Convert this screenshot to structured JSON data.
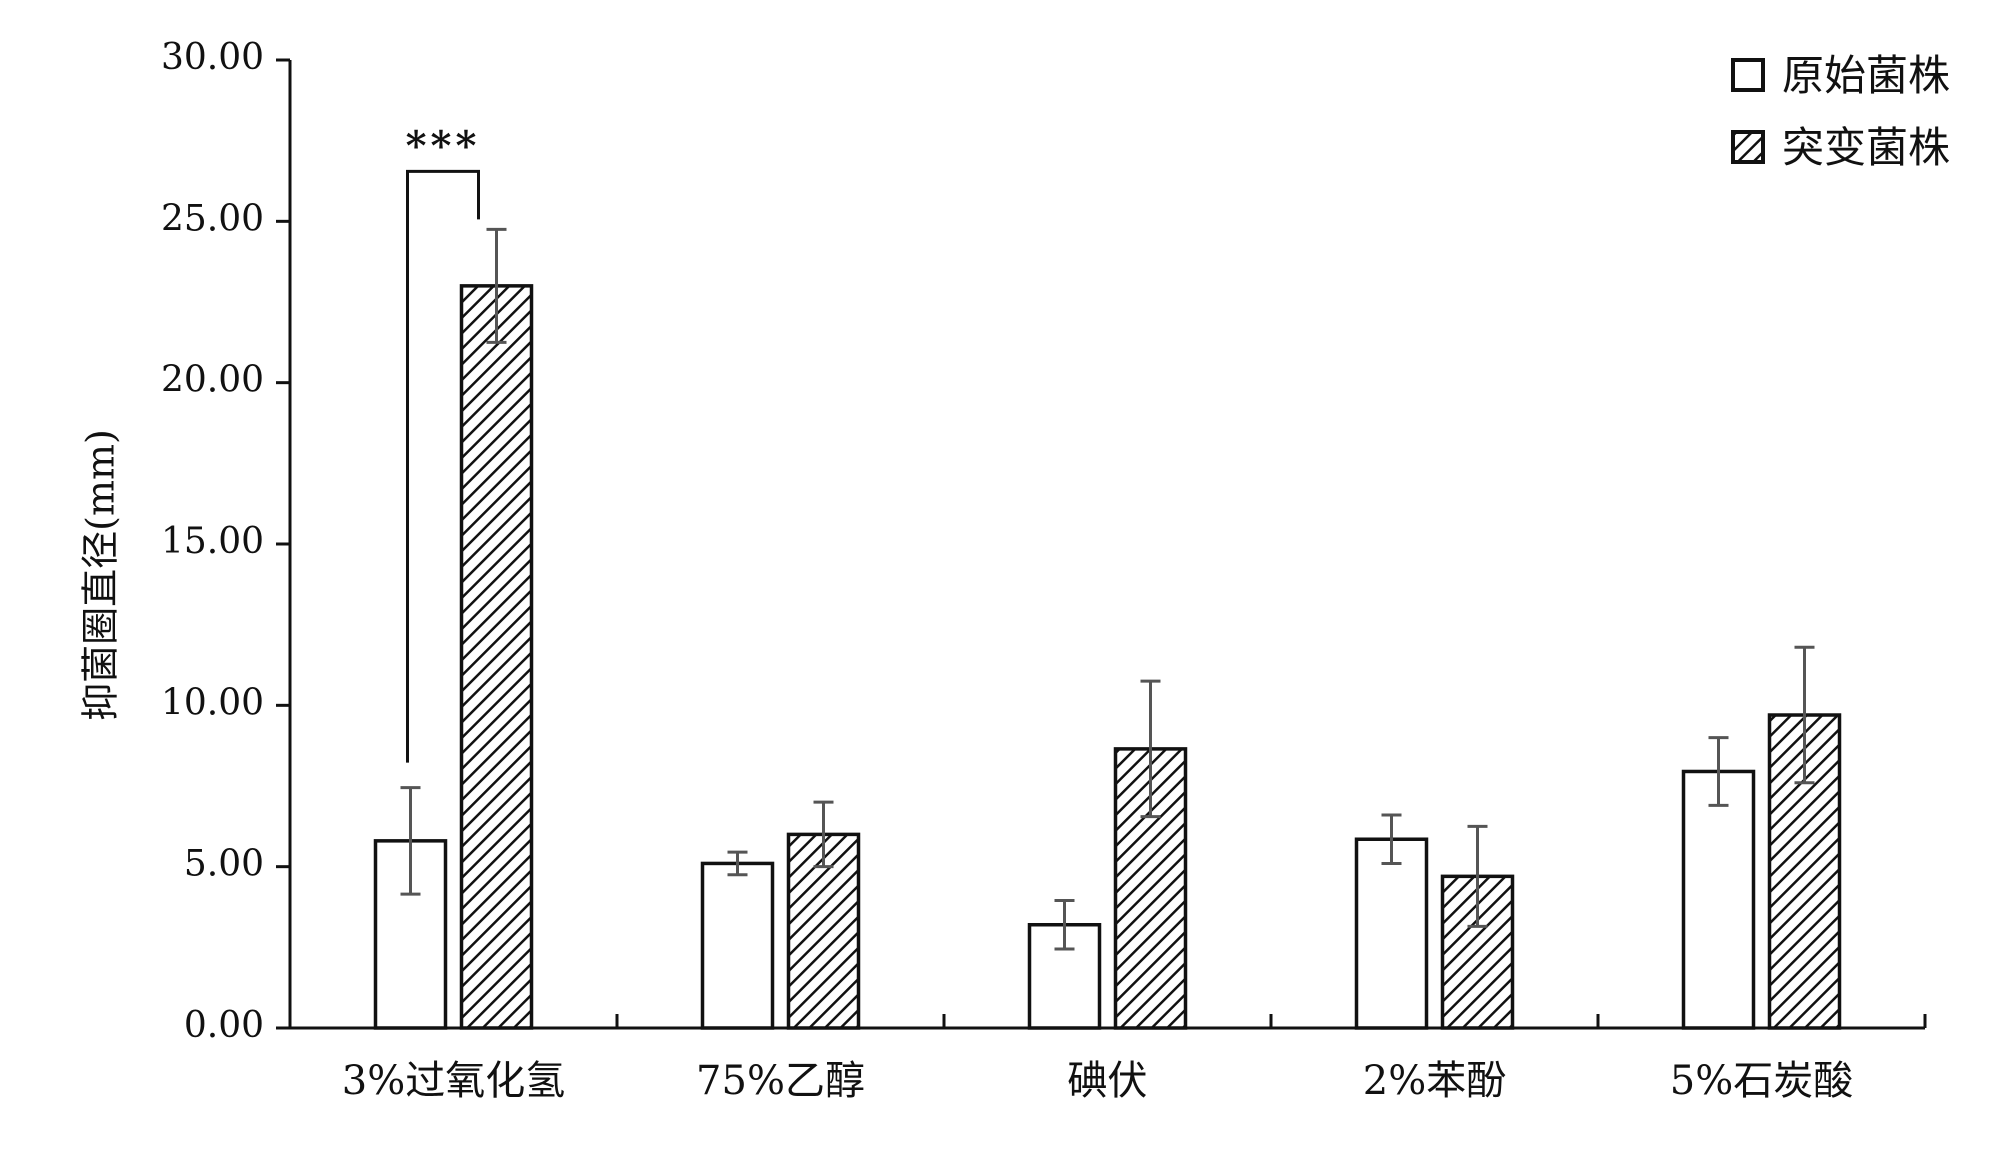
{
  "chart_data": {
    "type": "bar",
    "title": "",
    "xlabel": "",
    "ylabel": "抑菌圈直径(mm)",
    "ylim": [
      0,
      30
    ],
    "yticks": [
      0,
      5,
      10,
      15,
      20,
      25,
      30
    ],
    "ytick_labels": [
      "0.00",
      "5.00",
      "10.00",
      "15.00",
      "20.00",
      "25.00",
      "30.00"
    ],
    "categories": [
      "3%过氧化氢",
      "75%乙醇",
      "碘伏",
      "2%苯酚",
      "5%石炭酸"
    ],
    "series": [
      {
        "name": "原始菌株",
        "pattern": "open",
        "values": [
          5.8,
          5.1,
          3.2,
          5.85,
          7.95
        ],
        "errors": [
          1.65,
          0.35,
          0.75,
          0.75,
          1.05
        ]
      },
      {
        "name": "突变菌株",
        "pattern": "hatched",
        "values": [
          23.0,
          6.0,
          8.65,
          4.7,
          9.7
        ],
        "errors": [
          1.75,
          1.0,
          2.1,
          1.55,
          2.1
        ]
      }
    ],
    "legend": {
      "position": "top-right"
    },
    "grid": false,
    "annotations": [
      {
        "text": "***",
        "from_category": 0,
        "from_series": 0,
        "to_series": 1
      }
    ]
  },
  "colors": {
    "axis": "#111111",
    "bar_fill": "#ffffff",
    "hatch": "#111111",
    "error_bar": "#555555"
  }
}
